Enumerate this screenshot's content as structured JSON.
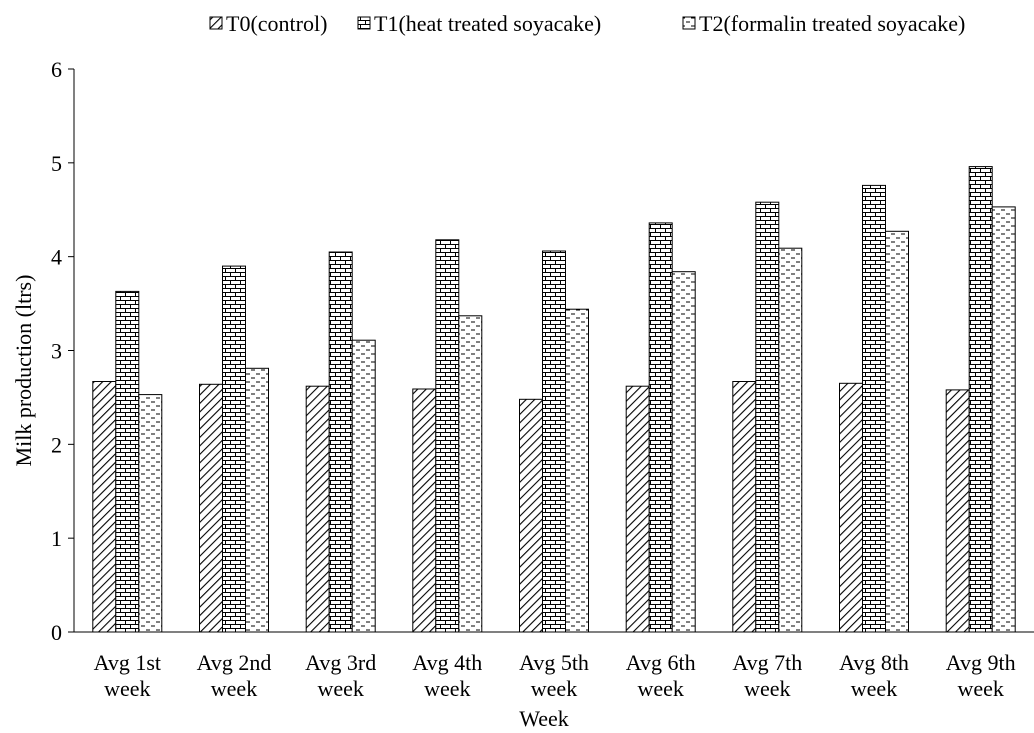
{
  "chart_data": {
    "type": "bar",
    "title": "",
    "xlabel": "Week",
    "ylabel": "Milk production (ltrs)",
    "ylim": [
      0,
      6
    ],
    "yticks": [
      0,
      1,
      2,
      3,
      4,
      5,
      6
    ],
    "grid": false,
    "legend_position": "top",
    "categories": [
      [
        "Avg 1st",
        "week"
      ],
      [
        "Avg 2nd",
        "week"
      ],
      [
        "Avg 3rd",
        "week"
      ],
      [
        "Avg 4th",
        "week"
      ],
      [
        "Avg 5th",
        "week"
      ],
      [
        "Avg 6th",
        "week"
      ],
      [
        "Avg 7th",
        "week"
      ],
      [
        "Avg 8th",
        "week"
      ],
      [
        "Avg 9th",
        "week"
      ]
    ],
    "series": [
      {
        "name": "T0(control)",
        "pattern": "diagonal-hatch",
        "values": [
          2.67,
          2.64,
          2.62,
          2.59,
          2.48,
          2.62,
          2.67,
          2.65,
          2.58
        ]
      },
      {
        "name": "T1(heat treated soyacake)",
        "pattern": "brick",
        "values": [
          3.63,
          3.9,
          4.05,
          4.18,
          4.06,
          4.36,
          4.58,
          4.76,
          4.96
        ]
      },
      {
        "name": "T2(formalin treated soyacake)",
        "pattern": "dashed-horizontal",
        "values": [
          2.53,
          2.81,
          3.11,
          3.37,
          3.44,
          3.84,
          4.09,
          4.27,
          4.53
        ]
      }
    ]
  }
}
